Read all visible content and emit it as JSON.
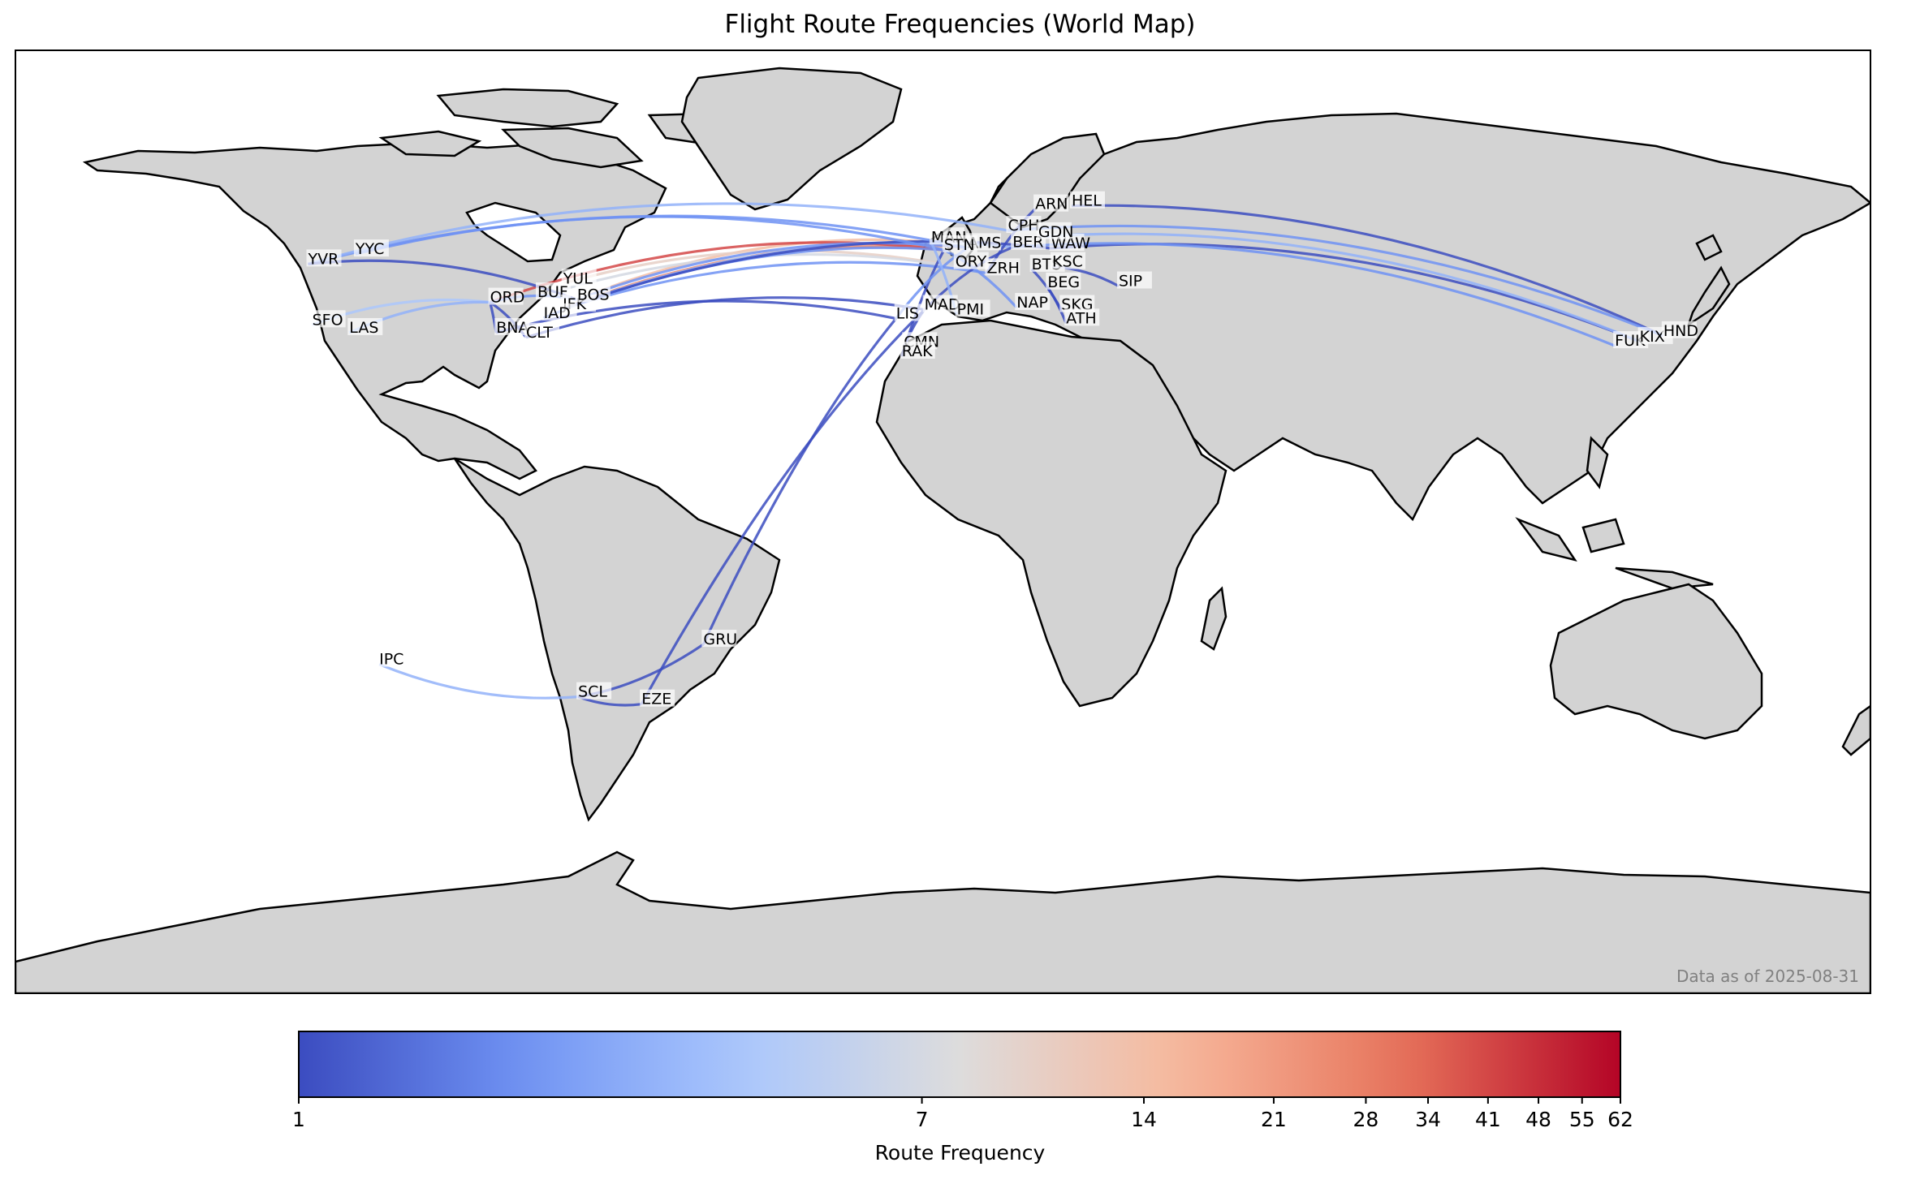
{
  "title": "Flight Route Frequencies (World Map)",
  "watermark": "Data as of 2025-08-31",
  "colorbar": {
    "label": "Route Frequency",
    "ticks": [
      "1",
      "7",
      "14",
      "21",
      "28",
      "34",
      "41",
      "48",
      "55",
      "62"
    ],
    "min": 1,
    "max": 62,
    "scale": "log",
    "colormap": "coolwarm",
    "colors": [
      "#3b4cc0",
      "#6f92f3",
      "#aac7fd",
      "#dddcdc",
      "#f7b89c",
      "#e7745b",
      "#b40426"
    ]
  },
  "colors": {
    "land": "#d3d3d3",
    "ocean": "#ffffff",
    "coast": "#000000"
  },
  "airports": [
    {
      "code": "YVR",
      "lon": -123.2,
      "lat": 49.2
    },
    {
      "code": "YYC",
      "lon": -114.0,
      "lat": 51.1
    },
    {
      "code": "SFO",
      "lon": -122.4,
      "lat": 37.6
    },
    {
      "code": "LAS",
      "lon": -115.2,
      "lat": 36.1
    },
    {
      "code": "ORD",
      "lon": -87.9,
      "lat": 41.9
    },
    {
      "code": "BUF",
      "lon": -78.7,
      "lat": 42.9
    },
    {
      "code": "YUL",
      "lon": -73.7,
      "lat": 45.5
    },
    {
      "code": "JFK",
      "lon": -73.8,
      "lat": 40.6
    },
    {
      "code": "BOS",
      "lon": -71.0,
      "lat": 42.4
    },
    {
      "code": "IAD",
      "lon": -77.5,
      "lat": 38.9
    },
    {
      "code": "BNA",
      "lon": -86.7,
      "lat": 36.1
    },
    {
      "code": "CLT",
      "lon": -80.9,
      "lat": 35.2
    },
    {
      "code": "GRU",
      "lon": -46.5,
      "lat": -23.4
    },
    {
      "code": "SCL",
      "lon": -70.8,
      "lat": -33.4
    },
    {
      "code": "EZE",
      "lon": -58.5,
      "lat": -34.8
    },
    {
      "code": "IPC",
      "lon": -109.4,
      "lat": -27.2
    },
    {
      "code": "LIS",
      "lon": -9.1,
      "lat": 38.8
    },
    {
      "code": "MAD",
      "lon": -3.6,
      "lat": 40.5
    },
    {
      "code": "CMN",
      "lon": -7.6,
      "lat": 33.4
    },
    {
      "code": "RAK",
      "lon": -8.0,
      "lat": 31.6
    },
    {
      "code": "MAN",
      "lon": -2.3,
      "lat": 53.4
    },
    {
      "code": "AMS",
      "lon": 4.8,
      "lat": 52.3
    },
    {
      "code": "BER",
      "lon": 13.5,
      "lat": 52.4
    },
    {
      "code": "WAW",
      "lon": 20.97,
      "lat": 52.2
    },
    {
      "code": "CPH",
      "lon": 12.6,
      "lat": 55.6
    },
    {
      "code": "ARN",
      "lon": 17.9,
      "lat": 59.7
    },
    {
      "code": "HEL",
      "lon": 24.97,
      "lat": 60.3
    },
    {
      "code": "GDN",
      "lon": 18.5,
      "lat": 54.4
    },
    {
      "code": "ZRH",
      "lon": 8.5,
      "lat": 47.5
    },
    {
      "code": "BTS",
      "lon": 17.2,
      "lat": 48.2
    },
    {
      "code": "KSC",
      "lon": 21.2,
      "lat": 48.7
    },
    {
      "code": "BEG",
      "lon": 20.3,
      "lat": 44.8
    },
    {
      "code": "SIP",
      "lon": 34.1,
      "lat": 45.0
    },
    {
      "code": "NAP",
      "lon": 14.3,
      "lat": 40.9
    },
    {
      "code": "SKG",
      "lon": 22.97,
      "lat": 40.5
    },
    {
      "code": "ATH",
      "lon": 23.9,
      "lat": 37.9
    },
    {
      "code": "PMI",
      "lon": 2.7,
      "lat": 39.6
    },
    {
      "code": "ORY",
      "lon": 2.4,
      "lat": 48.7
    },
    {
      "code": "STN",
      "lon": 0.2,
      "lat": 51.9
    },
    {
      "code": "FUK",
      "lon": 130.4,
      "lat": 33.6
    },
    {
      "code": "KIX",
      "lon": 135.2,
      "lat": 34.4
    },
    {
      "code": "HND",
      "lon": 139.8,
      "lat": 35.5
    }
  ],
  "routes": [
    {
      "from": "JFK",
      "to": "STN",
      "freq": 28
    },
    {
      "from": "JFK",
      "to": "AMS",
      "freq": 21
    },
    {
      "from": "BOS",
      "to": "MAN",
      "freq": 14
    },
    {
      "from": "YUL",
      "to": "ORY",
      "freq": 10
    },
    {
      "from": "ORD",
      "to": "STN",
      "freq": 41
    },
    {
      "from": "BUF",
      "to": "ORY",
      "freq": 7
    },
    {
      "from": "JFK",
      "to": "BER",
      "freq": 3
    },
    {
      "from": "IAD",
      "to": "STN",
      "freq": 2
    },
    {
      "from": "JFK",
      "to": "ZRH",
      "freq": 2
    },
    {
      "from": "BOS",
      "to": "AMS",
      "freq": 2
    },
    {
      "from": "JFK",
      "to": "WAW",
      "freq": 1
    },
    {
      "from": "CLT",
      "to": "MAD",
      "freq": 1
    },
    {
      "from": "BNA",
      "to": "LIS",
      "freq": 1
    },
    {
      "from": "YVR",
      "to": "AMS",
      "freq": 2
    },
    {
      "from": "YYC",
      "to": "STN",
      "freq": 2
    },
    {
      "from": "YVR",
      "to": "CPH",
      "freq": 3
    },
    {
      "from": "SFO",
      "to": "ORD",
      "freq": 4
    },
    {
      "from": "LAS",
      "to": "ORD",
      "freq": 3
    },
    {
      "from": "YVR",
      "to": "BOS",
      "freq": 1
    },
    {
      "from": "ORD",
      "to": "BNA",
      "freq": 1
    },
    {
      "from": "ORD",
      "to": "CLT",
      "freq": 1
    },
    {
      "from": "ORD",
      "to": "BOS",
      "freq": 2
    },
    {
      "from": "GRU",
      "to": "LIS",
      "freq": 1
    },
    {
      "from": "EZE",
      "to": "MAD",
      "freq": 1
    },
    {
      "from": "SCL",
      "to": "GRU",
      "freq": 1
    },
    {
      "from": "IPC",
      "to": "SCL",
      "freq": 3
    },
    {
      "from": "SCL",
      "to": "EZE",
      "freq": 1
    },
    {
      "from": "HEL",
      "to": "HND",
      "freq": 1
    },
    {
      "from": "WAW",
      "to": "KIX",
      "freq": 1
    },
    {
      "from": "BER",
      "to": "FUK",
      "freq": 2
    },
    {
      "from": "CPH",
      "to": "HND",
      "freq": 2
    },
    {
      "from": "GDN",
      "to": "KIX",
      "freq": 3
    },
    {
      "from": "CMN",
      "to": "MAD",
      "freq": 1
    },
    {
      "from": "RAK",
      "to": "STN",
      "freq": 1
    },
    {
      "from": "LIS",
      "to": "AMS",
      "freq": 2
    },
    {
      "from": "MAD",
      "to": "BER",
      "freq": 1
    },
    {
      "from": "NAP",
      "to": "STN",
      "freq": 2
    },
    {
      "from": "ATH",
      "to": "BEG",
      "freq": 1
    },
    {
      "from": "SIP",
      "to": "KSC",
      "freq": 1
    },
    {
      "from": "SKG",
      "to": "BTS",
      "freq": 1
    },
    {
      "from": "PMI",
      "to": "MAN",
      "freq": 3
    },
    {
      "from": "ZRH",
      "to": "ARN",
      "freq": 1
    }
  ]
}
